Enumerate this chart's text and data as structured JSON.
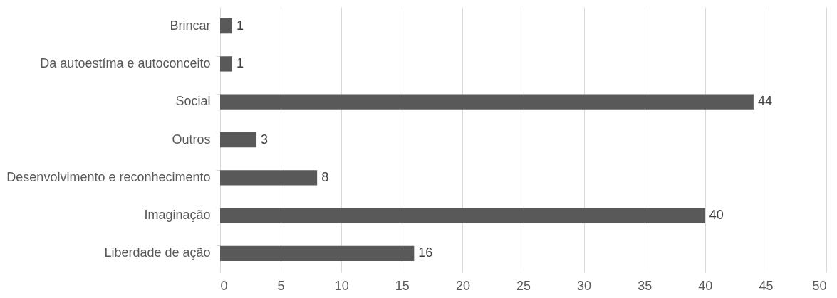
{
  "chart_data": {
    "type": "bar",
    "orientation": "horizontal",
    "categories": [
      "Brincar",
      "Da autoestíma e autoconceito",
      "Social",
      "Outros",
      "Desenvolvimento e reconhecimento",
      "Imaginação",
      "Liberdade de ação"
    ],
    "values": [
      1,
      1,
      44,
      3,
      8,
      40,
      16
    ],
    "color": "#595959",
    "xlim": [
      0,
      50
    ],
    "xticks": [
      0,
      5,
      10,
      15,
      20,
      25,
      30,
      35,
      40,
      45,
      50
    ],
    "grid": "x",
    "data_labels": true
  }
}
